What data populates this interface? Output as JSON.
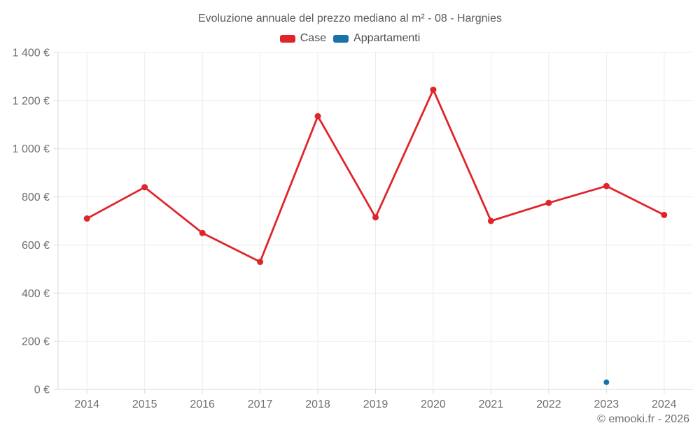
{
  "footer": {
    "copyright": "© emooki.fr - 2026"
  },
  "colors": {
    "case": "#e0252a",
    "appartamenti": "#1972a8",
    "grid": "#ececec",
    "axis": "#d9d9d9",
    "title_text": "#5b5b5b",
    "legend_text": "#4e4e4e",
    "tick_text": "#6f6f6f"
  },
  "chart_data": {
    "type": "line",
    "title": "Evoluzione annuale del prezzo mediano al m² - 08 - Hargnies",
    "categories": [
      "2014",
      "2015",
      "2016",
      "2017",
      "2018",
      "2019",
      "2020",
      "2021",
      "2022",
      "2023",
      "2024"
    ],
    "series": [
      {
        "name": "Case",
        "color": "#e0252a",
        "values": [
          710,
          840,
          650,
          530,
          1135,
          715,
          1245,
          700,
          775,
          845,
          725
        ]
      },
      {
        "name": "Appartamenti",
        "color": "#1972a8",
        "values": [
          null,
          null,
          null,
          null,
          null,
          null,
          null,
          null,
          null,
          30,
          null
        ]
      }
    ],
    "ylim": [
      0,
      1400
    ],
    "ytick_step": 200,
    "ytick_labels": [
      "0 €",
      "200 €",
      "400 €",
      "600 €",
      "800 €",
      "1 000 €",
      "1 200 €",
      "1 400 €"
    ],
    "currency": "€",
    "grid": true,
    "legend_position": "top"
  }
}
